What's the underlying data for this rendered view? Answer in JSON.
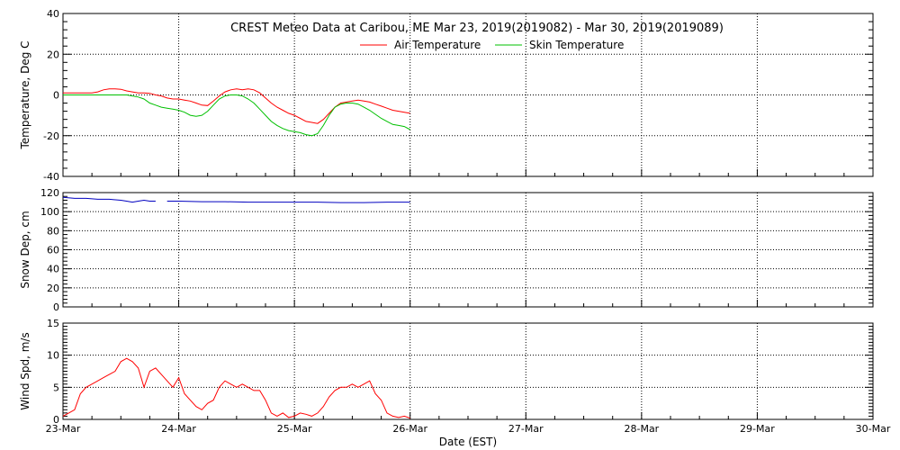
{
  "chart_data": [
    {
      "type": "line",
      "panel": "temperature",
      "title": "CREST Meteo Data at Caribou, ME   Mar 23, 2019(2019082) - Mar 30, 2019(2019089)",
      "ylabel": "Temperature, Deg C",
      "xlabel": "",
      "ylim": [
        -40,
        40
      ],
      "yticks": [
        -40,
        -20,
        0,
        20,
        40
      ],
      "grid": true,
      "legend_position": "top-center",
      "series": [
        {
          "name": "Air Temperature",
          "color": "#ff0000",
          "x": [
            0,
            0.1,
            0.2,
            0.25,
            0.3,
            0.35,
            0.4,
            0.45,
            0.5,
            0.55,
            0.6,
            0.65,
            0.7,
            0.75,
            0.8,
            0.85,
            0.9,
            0.95,
            1.0,
            1.05,
            1.1,
            1.15,
            1.2,
            1.25,
            1.3,
            1.35,
            1.4,
            1.45,
            1.5,
            1.55,
            1.6,
            1.65,
            1.7,
            1.75,
            1.8,
            1.85,
            1.9,
            1.95,
            2.0,
            2.05,
            2.1,
            2.15,
            2.2,
            2.25,
            2.3,
            2.35,
            2.4,
            2.45,
            2.5,
            2.55,
            2.6,
            2.65,
            2.7,
            2.75,
            2.8,
            2.85,
            2.9,
            2.95,
            3.0
          ],
          "y": [
            1,
            1,
            1,
            1,
            1.5,
            2.5,
            3,
            3,
            2.8,
            2,
            1.5,
            1,
            1,
            0.8,
            0,
            -0.5,
            -1.5,
            -2,
            -2,
            -2.5,
            -3,
            -4,
            -5,
            -5.2,
            -3,
            -0.5,
            1.5,
            2.5,
            3,
            2.5,
            3,
            2.5,
            1,
            -1.5,
            -4,
            -6,
            -7.5,
            -9,
            -10,
            -11.5,
            -13,
            -13.5,
            -14,
            -12,
            -9,
            -6,
            -4,
            -3.5,
            -3,
            -2.5,
            -3,
            -3.5,
            -4.5,
            -5.5,
            -6.5,
            -7.5,
            -8,
            -8.5,
            -9
          ]
        },
        {
          "name": "Skin Temperature",
          "color": "#00c000",
          "x": [
            0,
            0.1,
            0.2,
            0.25,
            0.3,
            0.35,
            0.4,
            0.45,
            0.5,
            0.55,
            0.6,
            0.65,
            0.7,
            0.75,
            0.8,
            0.85,
            0.9,
            0.95,
            1.0,
            1.05,
            1.1,
            1.15,
            1.2,
            1.25,
            1.3,
            1.35,
            1.4,
            1.45,
            1.5,
            1.55,
            1.6,
            1.65,
            1.7,
            1.75,
            1.8,
            1.85,
            1.9,
            1.95,
            2.0,
            2.05,
            2.1,
            2.15,
            2.2,
            2.25,
            2.3,
            2.35,
            2.4,
            2.45,
            2.5,
            2.55,
            2.6,
            2.65,
            2.7,
            2.75,
            2.8,
            2.85,
            2.9,
            2.95,
            3.0
          ],
          "y": [
            0,
            0,
            0,
            0,
            0,
            0,
            0,
            0,
            0,
            0,
            -0.5,
            -1,
            -2,
            -4,
            -5,
            -6,
            -6.5,
            -7,
            -7.5,
            -8.5,
            -10,
            -10.5,
            -10,
            -8,
            -5,
            -2,
            -0.5,
            0,
            0,
            -0.5,
            -2,
            -4,
            -7,
            -10,
            -13,
            -15,
            -16.5,
            -17.5,
            -18,
            -18.5,
            -19.5,
            -20,
            -19,
            -15,
            -10,
            -6,
            -4.5,
            -4,
            -4,
            -4.5,
            -6,
            -7.5,
            -9.5,
            -11.5,
            -13,
            -14.5,
            -15,
            -15.5,
            -17
          ]
        }
      ]
    },
    {
      "type": "line",
      "panel": "snow",
      "ylabel": "Snow Dep, cm",
      "xlabel": "",
      "ylim": [
        0,
        120
      ],
      "yticks": [
        0,
        20,
        40,
        60,
        80,
        100,
        120
      ],
      "grid": true,
      "series": [
        {
          "color": "#0000c0",
          "segments": [
            {
              "x": [
                0,
                0.1,
                0.2,
                0.3,
                0.4,
                0.5,
                0.55,
                0.6,
                0.65,
                0.7,
                0.75,
                0.8
              ],
              "y": [
                115,
                114,
                114,
                113,
                113,
                112,
                111,
                110,
                111,
                112,
                111,
                111
              ]
            },
            {
              "x": [
                0.9,
                1.0,
                1.2,
                1.4,
                1.6,
                1.8,
                2.0,
                2.2,
                2.4,
                2.6,
                2.8,
                3.0
              ],
              "y": [
                111,
                111,
                110.5,
                110.5,
                110,
                110,
                110,
                110,
                109.5,
                109.5,
                110,
                110
              ]
            }
          ]
        }
      ]
    },
    {
      "type": "line",
      "panel": "wind",
      "ylabel": "Wind Spd, m/s",
      "xlabel": "Date (EST)",
      "ylim": [
        0,
        15
      ],
      "yticks": [
        0,
        5,
        10,
        15
      ],
      "grid": true,
      "series": [
        {
          "color": "#ff0000",
          "x": [
            0,
            0.05,
            0.1,
            0.15,
            0.2,
            0.25,
            0.3,
            0.35,
            0.4,
            0.45,
            0.5,
            0.55,
            0.6,
            0.65,
            0.7,
            0.75,
            0.8,
            0.85,
            0.9,
            0.95,
            1.0,
            1.05,
            1.1,
            1.15,
            1.2,
            1.25,
            1.3,
            1.35,
            1.4,
            1.45,
            1.5,
            1.55,
            1.6,
            1.65,
            1.7,
            1.75,
            1.8,
            1.85,
            1.9,
            1.95,
            2.0,
            2.05,
            2.1,
            2.15,
            2.2,
            2.25,
            2.3,
            2.35,
            2.4,
            2.45,
            2.5,
            2.55,
            2.6,
            2.65,
            2.7,
            2.75,
            2.8,
            2.85,
            2.9,
            2.95,
            3.0
          ],
          "y": [
            0.5,
            1,
            1.5,
            4,
            5,
            5.5,
            6,
            6.5,
            7,
            7.5,
            9,
            9.5,
            9,
            8,
            5,
            7.5,
            8,
            7,
            6,
            5,
            6.5,
            4,
            3,
            2,
            1.5,
            2.5,
            3,
            5,
            6,
            5.5,
            5,
            5.5,
            5,
            4.5,
            4.5,
            3,
            1,
            0.5,
            1,
            0.3,
            0.5,
            1,
            0.8,
            0.5,
            1,
            2,
            3.5,
            4.5,
            5,
            5,
            5.5,
            5,
            5.5,
            6,
            4,
            3,
            1,
            0.5,
            0.3,
            0.5,
            0.2
          ]
        }
      ]
    }
  ],
  "x_axis": {
    "tick_labels": [
      "23-Mar",
      "24-Mar",
      "25-Mar",
      "26-Mar",
      "27-Mar",
      "28-Mar",
      "29-Mar",
      "30-Mar"
    ],
    "xlim": [
      0,
      7
    ]
  }
}
